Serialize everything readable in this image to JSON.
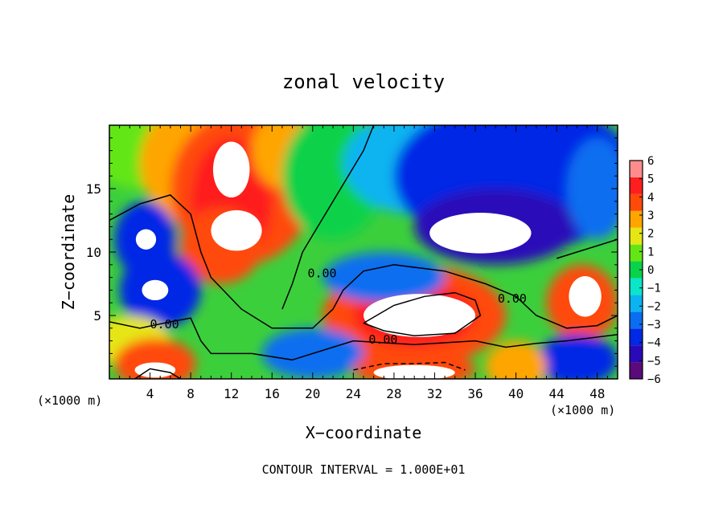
{
  "chart_data": {
    "type": "heatmap",
    "title": "zonal velocity",
    "xlabel": "X−coordinate",
    "ylabel": "Z−coordinate",
    "x_unit": "(×1000 m)",
    "xlim": [
      0,
      50
    ],
    "ylim": [
      0,
      20
    ],
    "x_ticks": [
      4,
      8,
      12,
      16,
      20,
      24,
      28,
      32,
      36,
      40,
      44,
      48
    ],
    "y_ticks": [
      5,
      10,
      15
    ],
    "colorbar": {
      "min": -6,
      "max": 6,
      "ticks": [
        6,
        5,
        4,
        3,
        2,
        1,
        0,
        -1,
        -2,
        -3,
        -4,
        -5,
        -6
      ],
      "tick_labels": [
        "6",
        "5",
        "4",
        "3",
        "2",
        "1",
        "0",
        "−1",
        "−2",
        "−3",
        "−4",
        "−5",
        "−6"
      ],
      "colors": [
        "#5a0a7a",
        "#2a0ab8",
        "#0028e6",
        "#0a6ef0",
        "#0ab4f0",
        "#0ae6c8",
        "#0ad24a",
        "#64e614",
        "#e6e614",
        "#ffa500",
        "#ff4a0a",
        "#ff1e1e",
        "#ff8c8c"
      ]
    },
    "contour_labels": [
      "0.00",
      "0.00",
      "0.00",
      "0.00"
    ],
    "features": [
      {
        "x": 12.5,
        "z": 14,
        "value": 6
      },
      {
        "x": 11,
        "z": 11,
        "value": 5
      },
      {
        "x": 31,
        "z": 4.5,
        "value": 6
      },
      {
        "x": 36,
        "z": 12,
        "value": -6
      },
      {
        "x": 3.5,
        "z": 11,
        "value": -6
      },
      {
        "x": 5,
        "z": 6.5,
        "value": -6
      },
      {
        "x": 46.5,
        "z": 6,
        "value": 6
      },
      {
        "x": 37,
        "z": 17,
        "value": -5
      },
      {
        "x": 4.5,
        "z": 1.5,
        "value": 6
      },
      {
        "x": 30,
        "z": 1,
        "value": 6
      }
    ],
    "footnote": "CONTOUR INTERVAL = 1.000E+01"
  }
}
